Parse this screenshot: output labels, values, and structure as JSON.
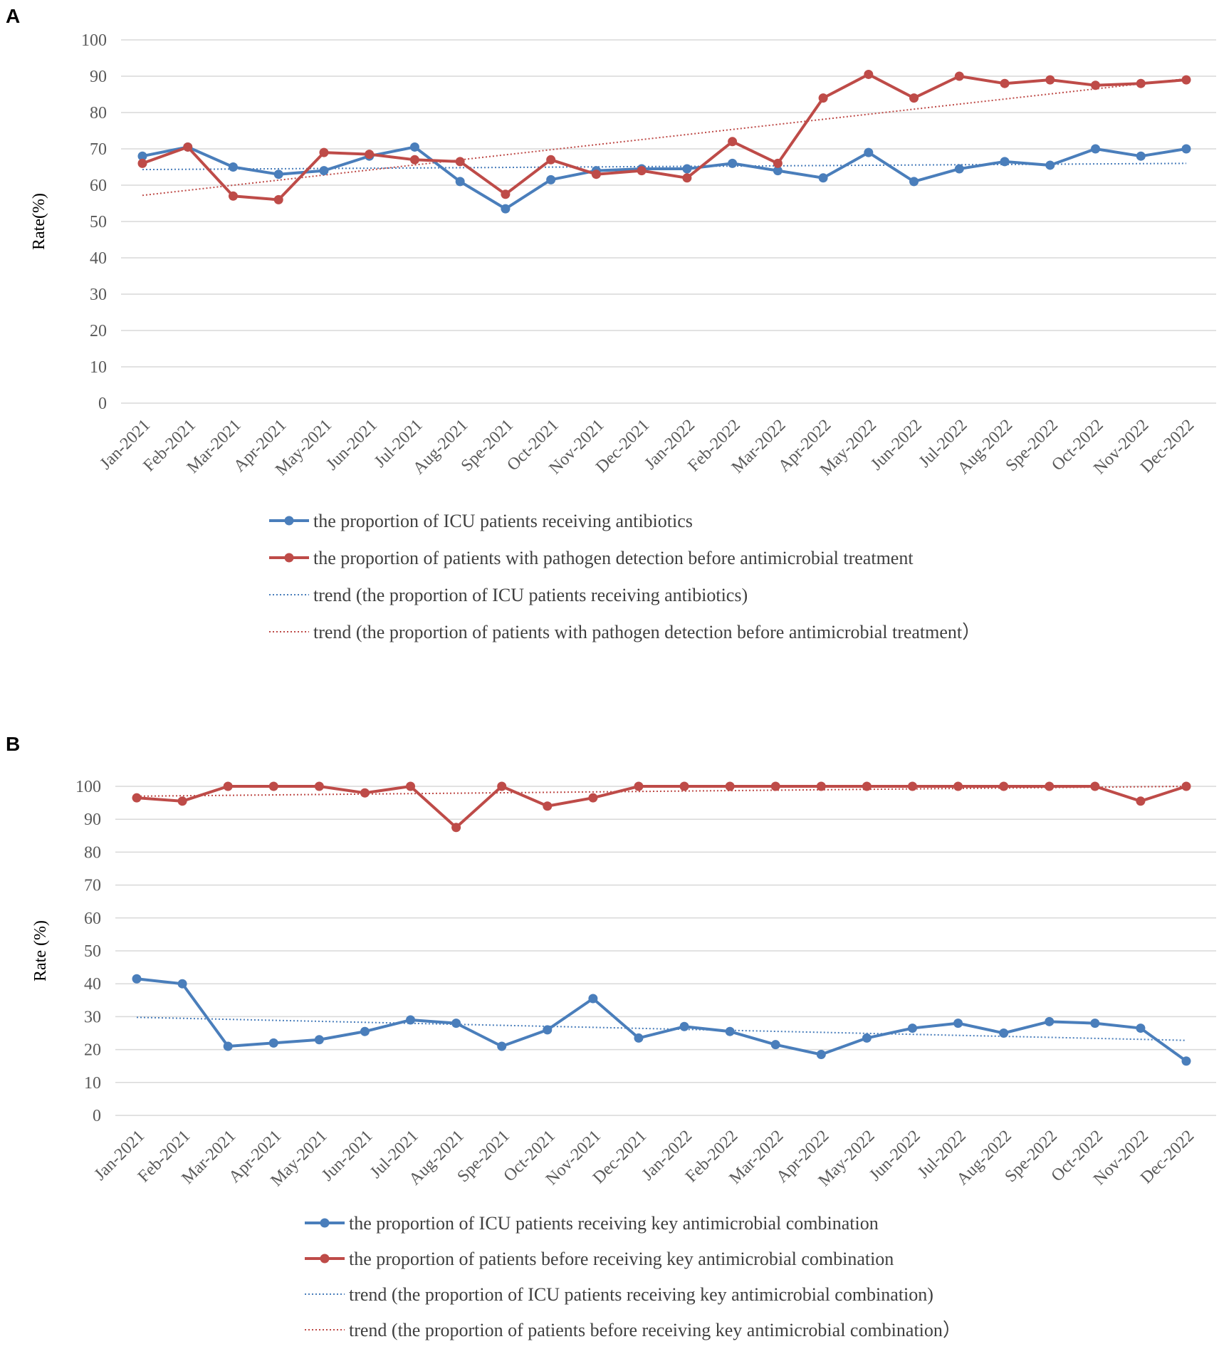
{
  "colors": {
    "blue": "#4a7ebb",
    "red": "#be4b48",
    "grid": "#d9d9d9"
  },
  "chart_data": [
    {
      "panel": "A",
      "type": "line",
      "ylabel": "Rate(%)",
      "ylim": [
        0,
        100
      ],
      "yticks": [
        "0",
        "10",
        "20",
        "30",
        "40",
        "50",
        "60",
        "70",
        "80",
        "90",
        "100"
      ],
      "categories": [
        "Jan-2021",
        "Feb-2021",
        "Mar-2021",
        "Apr-2021",
        "May-2021",
        "Jun-2021",
        "Jul-2021",
        "Aug-2021",
        "Spe-2021",
        "Oct-2021",
        "Nov-2021",
        "Dec-2021",
        "Jan-2022",
        "Feb-2022",
        "Mar-2022",
        "Apr-2022",
        "May-2022",
        "Jun-2022",
        "Jul-2022",
        "Aug-2022",
        "Spe-2022",
        "Oct-2022",
        "Nov-2022",
        "Dec-2022"
      ],
      "series": [
        {
          "name": "the proportion of ICU patients receiving antibiotics",
          "color": "blue",
          "values": [
            68,
            70.5,
            65,
            63,
            64,
            68,
            70.5,
            61,
            53.5,
            61.5,
            64,
            64.5,
            64.5,
            66,
            64,
            62,
            69,
            61,
            64.5,
            66.5,
            65.5,
            70,
            68,
            70
          ]
        },
        {
          "name": "the proportion of patients with pathogen detection before antimicrobial treatment",
          "color": "red",
          "values": [
            66,
            70.5,
            57,
            56,
            69,
            68.5,
            67,
            66.5,
            57.5,
            67,
            63,
            64,
            62,
            72,
            66,
            84,
            90.5,
            84,
            90,
            88,
            89,
            87.5,
            88,
            89
          ]
        }
      ],
      "trends": [
        {
          "name": "trend (the proportion of ICU patients receiving antibiotics)",
          "color": "blue",
          "start": 64.3,
          "end": 66
        },
        {
          "name": "trend (the proportion of patients with pathogen detection before antimicrobial treatment）",
          "color": "red",
          "start": 57.2,
          "end": 89.3
        }
      ]
    },
    {
      "panel": "B",
      "type": "line",
      "ylabel": "Rate (%)",
      "ylim": [
        0,
        100
      ],
      "yticks": [
        "0",
        "10",
        "20",
        "30",
        "40",
        "50",
        "60",
        "70",
        "80",
        "90",
        "100"
      ],
      "categories": [
        "Jan-2021",
        "Feb-2021",
        "Mar-2021",
        "Apr-2021",
        "May-2021",
        "Jun-2021",
        "Jul-2021",
        "Aug-2021",
        "Spe-2021",
        "Oct-2021",
        "Nov-2021",
        "Dec-2021",
        "Jan-2022",
        "Feb-2022",
        "Mar-2022",
        "Apr-2022",
        "May-2022",
        "Jun-2022",
        "Jul-2022",
        "Aug-2022",
        "Spe-2022",
        "Oct-2022",
        "Nov-2022",
        "Dec-2022"
      ],
      "series": [
        {
          "name": "the proportion of ICU patients receiving key antimicrobial combination",
          "color": "blue",
          "values": [
            41.5,
            40,
            21,
            22,
            23,
            25.5,
            29,
            28,
            21,
            26,
            35.5,
            23.5,
            27,
            25.5,
            21.5,
            18.5,
            23.5,
            26.5,
            28,
            25,
            28.5,
            28,
            26.5,
            16.5
          ]
        },
        {
          "name": "the proportion of patients before receiving key antimicrobial combination",
          "color": "red",
          "values": [
            96.5,
            95.5,
            100,
            100,
            100,
            98,
            100,
            87.5,
            100,
            94,
            96.5,
            100,
            100,
            100,
            100,
            100,
            100,
            100,
            100,
            100,
            100,
            100,
            95.5,
            100
          ]
        }
      ],
      "trends": [
        {
          "name": "trend (the proportion of ICU patients receiving key antimicrobial combination)",
          "color": "blue",
          "start": 29.8,
          "end": 22.8
        },
        {
          "name": "trend (the proportion of patients before receiving key antimicrobial combination）",
          "color": "red",
          "start": 97,
          "end": 100
        }
      ]
    }
  ]
}
